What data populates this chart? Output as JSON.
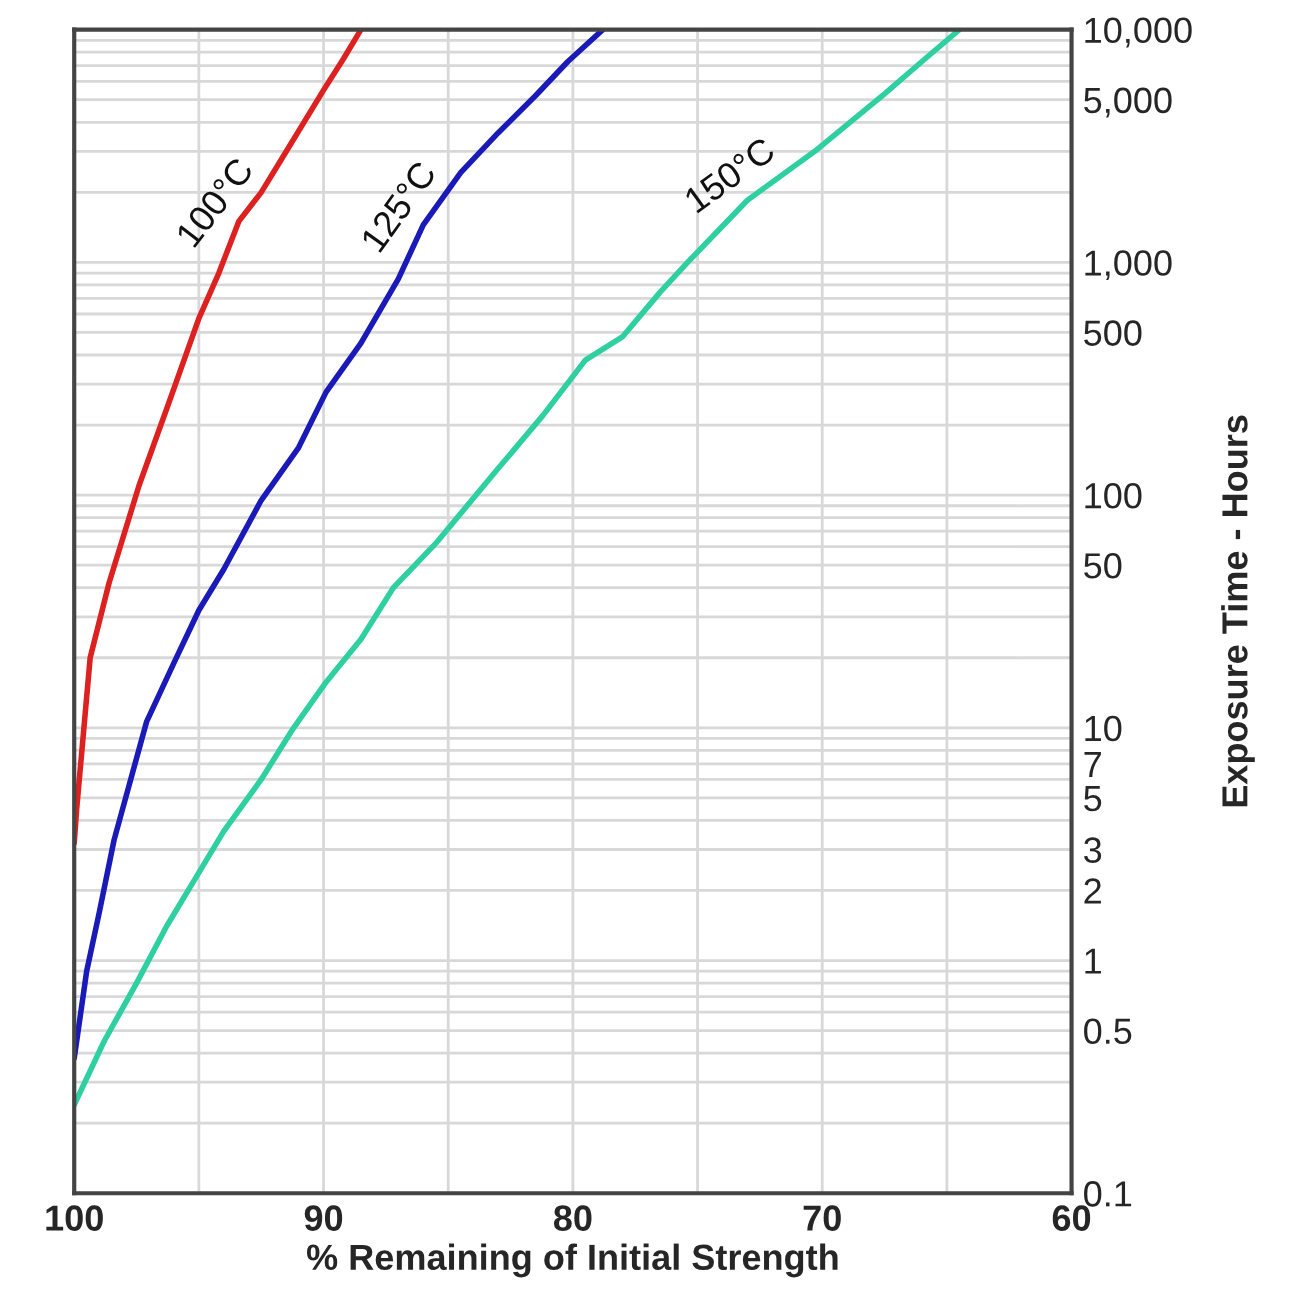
{
  "chart_data": {
    "type": "line",
    "xlabel": "% Remaining of Initial Strength",
    "ylabel": "Exposure Time - Hours",
    "log": "y",
    "grid": true,
    "marker": "none",
    "line_style": "solid",
    "xlim": [
      100,
      60
    ],
    "xticks": [
      100,
      {
        "value": 95,
        "label": null
      },
      90,
      {
        "value": 85,
        "label": null
      },
      80,
      {
        "value": 75,
        "label": null
      },
      70,
      {
        "value": 65,
        "label": null
      },
      60
    ],
    "ylim": [
      0.1,
      10000
    ],
    "yticks": [
      0.1,
      {
        "value": 0.2,
        "label": null
      },
      {
        "value": 0.3,
        "label": null
      },
      {
        "value": 0.4,
        "label": null
      },
      0.5,
      {
        "value": 0.6,
        "label": null
      },
      {
        "value": 0.7,
        "label": null
      },
      {
        "value": 0.8,
        "label": null
      },
      {
        "value": 0.9,
        "label": null
      },
      1,
      2,
      3,
      {
        "value": 4,
        "label": null
      },
      5,
      {
        "value": 6,
        "label": null
      },
      7,
      {
        "value": 8,
        "label": null
      },
      {
        "value": 9,
        "label": null
      },
      10,
      {
        "value": 20,
        "label": null
      },
      {
        "value": 30,
        "label": null
      },
      {
        "value": 40,
        "label": null
      },
      50,
      {
        "value": 60,
        "label": null
      },
      {
        "value": 70,
        "label": null
      },
      {
        "value": 80,
        "label": null
      },
      {
        "value": 90,
        "label": null
      },
      100,
      {
        "value": 200,
        "label": null
      },
      {
        "value": 300,
        "label": null
      },
      {
        "value": 400,
        "label": null
      },
      500,
      {
        "value": 600,
        "label": null
      },
      {
        "value": 700,
        "label": null
      },
      {
        "value": 800,
        "label": null
      },
      {
        "value": 900,
        "label": null
      },
      {
        "value": 1000,
        "label": "1,000"
      },
      {
        "value": 2000,
        "label": null
      },
      {
        "value": 3000,
        "label": null
      },
      {
        "value": 4000,
        "label": null
      },
      {
        "value": 5000,
        "label": "5,000"
      },
      {
        "value": 6000,
        "label": null
      },
      {
        "value": 7000,
        "label": null
      },
      {
        "value": 8000,
        "label": null
      },
      {
        "value": 9000,
        "label": null
      },
      {
        "value": 10000,
        "label": "10,000"
      }
    ],
    "series": [
      {
        "name": "100°C",
        "color": "#dd2020",
        "x": [
          100,
          99.9,
          99.36,
          98.6,
          97.4,
          96.2,
          95.0,
          94.2,
          93.4,
          92.5,
          91.7,
          90.0,
          89.2,
          88.5
        ],
        "values": [
          3.2,
          4.5,
          20,
          42,
          110,
          250,
          575,
          900,
          1500,
          2000,
          2760,
          5500,
          7500,
          10000
        ]
      },
      {
        "name": "125°C",
        "color": "#1a1ab8",
        "x": [
          100,
          99.5,
          99.0,
          98.4,
          97.1,
          96.0,
          95.0,
          94.0,
          92.5,
          91.0,
          89.9,
          88.5,
          87.0,
          86.0,
          84.5,
          83.0,
          81.5,
          80.2,
          78.8
        ],
        "values": [
          0.38,
          0.9,
          1.6,
          3.3,
          10.6,
          19,
          32,
          48,
          95,
          160,
          277,
          450,
          850,
          1450,
          2430,
          3600,
          5200,
          7300,
          10000
        ]
      },
      {
        "name": "150°C",
        "color": "#2ecfa0",
        "x": [
          100,
          98.8,
          97.5,
          96.3,
          95.2,
          94.0,
          92.5,
          91.2,
          89.9,
          88.5,
          87.2,
          85.5,
          83.0,
          81.2,
          79.5,
          78.0,
          76.5,
          75.4,
          73.0,
          70.3,
          67.5,
          66.0,
          64.5
        ],
        "values": [
          0.24,
          0.45,
          0.8,
          1.4,
          2.2,
          3.6,
          6.0,
          10,
          15.7,
          24,
          40,
          62,
          130,
          220,
          380,
          480,
          745,
          1000,
          1850,
          3000,
          5300,
          7300,
          10000
        ]
      }
    ]
  }
}
